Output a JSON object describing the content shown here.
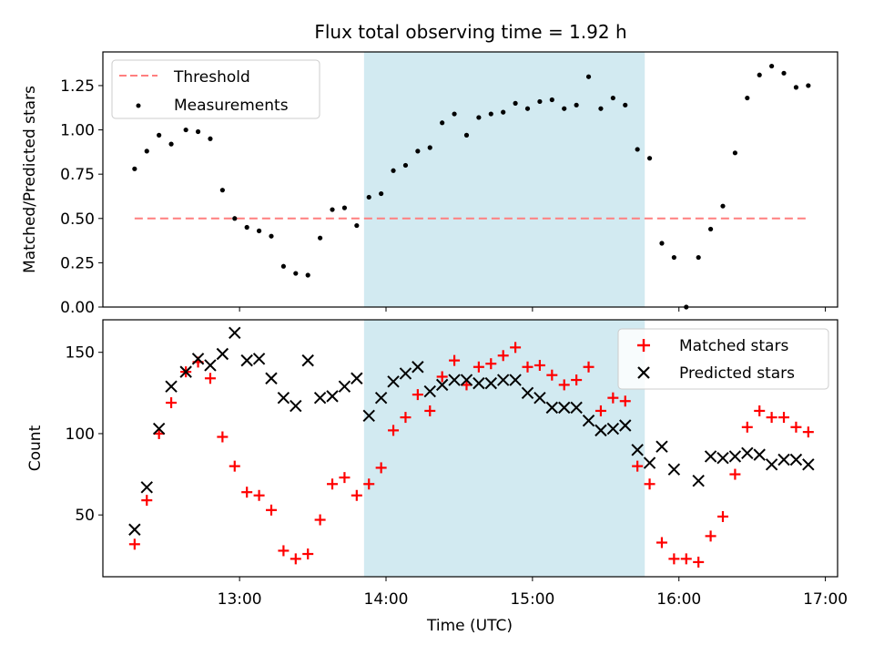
{
  "chart_data": [
    {
      "type": "scatter",
      "title": "Flux total observing time = 1.92 h",
      "xlabel": "",
      "ylabel": "Matched/Predicted stars",
      "xlim": [
        "12:04",
        "17:05"
      ],
      "ylim": [
        0,
        1.44
      ],
      "yticks": [
        0.0,
        0.25,
        0.5,
        0.75,
        1.0,
        1.25
      ],
      "ytick_labels": [
        "0.00",
        "0.25",
        "0.50",
        "0.75",
        "1.00",
        "1.25"
      ],
      "shaded_interval": [
        "13:51",
        "15:46"
      ],
      "shade_color": "#add8e6",
      "legend_position": "upper-left",
      "series": [
        {
          "name": "Threshold",
          "kind": "line",
          "style": "dashed",
          "color": "#ff7f7f",
          "x": [
            "12:17",
            "16:53"
          ],
          "y": [
            0.5,
            0.5
          ]
        },
        {
          "name": "Measurements",
          "kind": "scatter",
          "marker": "dot",
          "color": "#000000",
          "x": [
            "12:17",
            "12:22",
            "12:27",
            "12:32",
            "12:38",
            "12:43",
            "12:48",
            "12:53",
            "12:58",
            "13:03",
            "13:08",
            "13:13",
            "13:18",
            "13:23",
            "13:28",
            "13:33",
            "13:38",
            "13:43",
            "13:48",
            "13:53",
            "13:58",
            "14:03",
            "14:08",
            "14:13",
            "14:18",
            "14:23",
            "14:28",
            "14:33",
            "14:38",
            "14:43",
            "14:48",
            "14:53",
            "14:58",
            "15:03",
            "15:08",
            "15:13",
            "15:18",
            "15:23",
            "15:28",
            "15:33",
            "15:38",
            "15:43",
            "15:48",
            "15:53",
            "15:58",
            "16:03",
            "16:08",
            "16:13",
            "16:18",
            "16:23",
            "16:28",
            "16:33",
            "16:38",
            "16:43",
            "16:48",
            "16:53"
          ],
          "y": [
            0.78,
            0.88,
            0.97,
            0.92,
            1.0,
            0.99,
            0.95,
            0.66,
            0.5,
            0.45,
            0.43,
            0.4,
            0.23,
            0.19,
            0.18,
            0.39,
            0.55,
            0.56,
            0.46,
            0.62,
            0.64,
            0.77,
            0.8,
            0.88,
            0.9,
            1.04,
            1.09,
            0.97,
            1.07,
            1.09,
            1.1,
            1.15,
            1.12,
            1.16,
            1.17,
            1.12,
            1.14,
            1.3,
            1.12,
            1.18,
            1.14,
            0.89,
            0.84,
            0.36,
            0.28,
            0.0,
            0.28,
            0.44,
            0.57,
            0.87,
            1.18,
            1.31,
            1.36,
            1.32,
            1.24,
            1.25
          ]
        }
      ]
    },
    {
      "type": "scatter",
      "title": "",
      "xlabel": "Time (UTC)",
      "ylabel": "Count",
      "xlim": [
        "12:04",
        "17:05"
      ],
      "ylim": [
        12,
        170
      ],
      "yticks": [
        50,
        100,
        150
      ],
      "ytick_labels": [
        "50",
        "100",
        "150"
      ],
      "xticks": [
        "13:00",
        "14:00",
        "15:00",
        "16:00",
        "17:00"
      ],
      "shaded_interval": [
        "13:51",
        "15:46"
      ],
      "shade_color": "#add8e6",
      "legend_position": "upper-right",
      "series": [
        {
          "name": "Matched stars",
          "marker": "plus",
          "color": "#ff0000",
          "x": [
            "12:17",
            "12:22",
            "12:27",
            "12:32",
            "12:38",
            "12:43",
            "12:48",
            "12:53",
            "12:58",
            "13:03",
            "13:08",
            "13:13",
            "13:18",
            "13:23",
            "13:28",
            "13:33",
            "13:38",
            "13:43",
            "13:48",
            "13:53",
            "13:58",
            "14:03",
            "14:08",
            "14:13",
            "14:18",
            "14:23",
            "14:28",
            "14:33",
            "14:38",
            "14:43",
            "14:48",
            "14:53",
            "14:58",
            "15:03",
            "15:08",
            "15:13",
            "15:18",
            "15:23",
            "15:28",
            "15:33",
            "15:38",
            "15:43",
            "15:48",
            "15:53",
            "15:58",
            "16:03",
            "16:08",
            "16:13",
            "16:18",
            "16:23",
            "16:28",
            "16:33",
            "16:38",
            "16:43",
            "16:48",
            "16:53"
          ],
          "y": [
            32,
            59,
            100,
            119,
            138,
            144,
            134,
            98,
            80,
            64,
            62,
            53,
            28,
            23,
            26,
            47,
            69,
            73,
            62,
            69,
            79,
            102,
            110,
            124,
            114,
            135,
            145,
            130,
            141,
            143,
            148,
            153,
            141,
            142,
            136,
            130,
            133,
            141,
            114,
            122,
            120,
            80,
            69,
            33,
            23,
            23,
            21,
            37,
            49,
            75,
            104,
            114,
            110,
            110,
            104,
            101
          ]
        },
        {
          "name": "Predicted stars",
          "marker": "x",
          "color": "#000000",
          "x": [
            "12:17",
            "12:22",
            "12:27",
            "12:32",
            "12:38",
            "12:43",
            "12:48",
            "12:53",
            "12:58",
            "13:03",
            "13:08",
            "13:13",
            "13:18",
            "13:23",
            "13:28",
            "13:33",
            "13:38",
            "13:43",
            "13:48",
            "13:53",
            "13:58",
            "14:03",
            "14:08",
            "14:13",
            "14:18",
            "14:23",
            "14:28",
            "14:33",
            "14:38",
            "14:43",
            "14:48",
            "14:53",
            "14:58",
            "15:03",
            "15:08",
            "15:13",
            "15:18",
            "15:23",
            "15:28",
            "15:33",
            "15:38",
            "15:43",
            "15:48",
            "15:53",
            "15:58",
            "16:03",
            "16:08",
            "16:13",
            "16:18",
            "16:23",
            "16:28",
            "16:33",
            "16:38",
            "16:43",
            "16:48",
            "16:53"
          ],
          "y": [
            41,
            67,
            103,
            129,
            138,
            146,
            142,
            149,
            162,
            145,
            146,
            134,
            122,
            117,
            145,
            122,
            123,
            129,
            134,
            111,
            122,
            132,
            137,
            141,
            126,
            130,
            133,
            133,
            131,
            131,
            133,
            133,
            125,
            122,
            116,
            116,
            116,
            108,
            102,
            103,
            105,
            90,
            82,
            92,
            78,
            null,
            71,
            86,
            85,
            86,
            88,
            87,
            81,
            84,
            84,
            81
          ]
        }
      ]
    }
  ]
}
